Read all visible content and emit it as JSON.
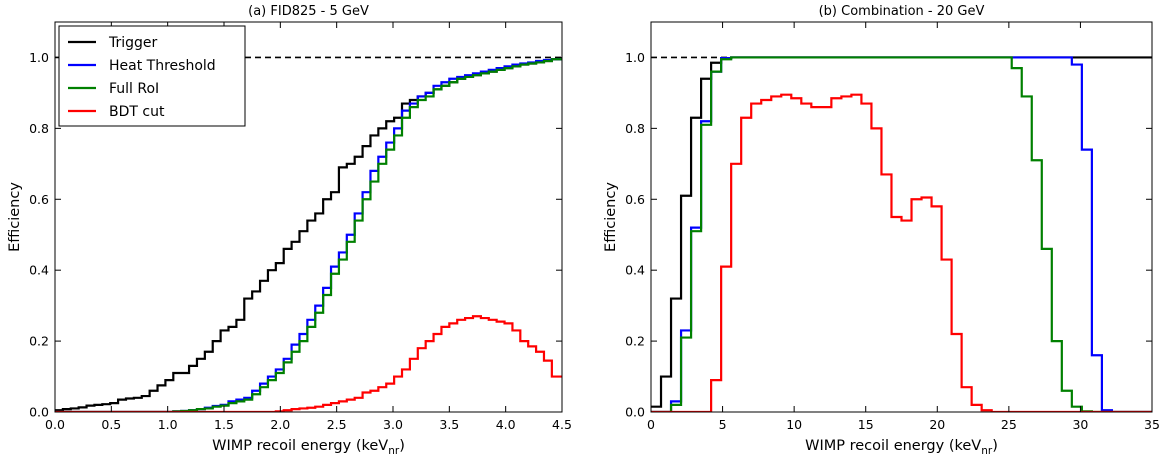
{
  "chart_data": [
    {
      "type": "line",
      "step": true,
      "title": "(a)  FID825 - 5 GeV",
      "xlabel_main": "WIMP recoil energy (keV",
      "xlabel_sub": "nr",
      "xlabel_close": ")",
      "ylabel": "Efficiency",
      "xlim": [
        0,
        4.5
      ],
      "ylim": [
        0,
        1.1
      ],
      "xticks": [
        0.0,
        0.5,
        1.0,
        1.5,
        2.0,
        2.5,
        3.0,
        3.5,
        4.0,
        4.5
      ],
      "xtick_labels": [
        "0.0",
        "0.5",
        "1.0",
        "1.5",
        "2.0",
        "2.5",
        "3.0",
        "3.5",
        "4.0",
        "4.5"
      ],
      "yticks": [
        0.0,
        0.2,
        0.4,
        0.6,
        0.8,
        1.0
      ],
      "ytick_labels": [
        "0.0",
        "0.2",
        "0.4",
        "0.6",
        "0.8",
        "1.0"
      ],
      "legend_position": "top-left",
      "reference_line": {
        "y": 1.0,
        "style": "dashed"
      },
      "bin_edges": [
        0.0,
        0.07,
        0.14,
        0.21,
        0.28,
        0.35,
        0.42,
        0.49,
        0.56,
        0.63,
        0.7,
        0.77,
        0.84,
        0.91,
        0.98,
        1.05,
        1.12,
        1.19,
        1.26,
        1.33,
        1.4,
        1.47,
        1.54,
        1.61,
        1.68,
        1.75,
        1.82,
        1.89,
        1.96,
        2.03,
        2.1,
        2.17,
        2.24,
        2.31,
        2.38,
        2.45,
        2.52,
        2.59,
        2.66,
        2.73,
        2.8,
        2.87,
        2.94,
        3.01,
        3.08,
        3.15,
        3.22,
        3.29,
        3.36,
        3.43,
        3.5,
        3.57,
        3.64,
        3.71,
        3.78,
        3.85,
        3.92,
        3.99,
        4.06,
        4.13,
        4.2,
        4.27,
        4.34,
        4.41,
        4.5
      ],
      "series": [
        {
          "name": "Trigger",
          "color": "#000000",
          "values": [
            0.005,
            0.008,
            0.01,
            0.013,
            0.018,
            0.02,
            0.022,
            0.025,
            0.035,
            0.038,
            0.04,
            0.045,
            0.06,
            0.075,
            0.09,
            0.11,
            0.11,
            0.13,
            0.15,
            0.17,
            0.2,
            0.23,
            0.24,
            0.26,
            0.32,
            0.34,
            0.37,
            0.4,
            0.42,
            0.46,
            0.48,
            0.51,
            0.54,
            0.56,
            0.6,
            0.62,
            0.69,
            0.7,
            0.72,
            0.75,
            0.78,
            0.8,
            0.82,
            0.83,
            0.87,
            0.88,
            0.89,
            0.9,
            0.91,
            0.92,
            0.93,
            0.94,
            0.945,
            0.95,
            0.955,
            0.96,
            0.965,
            0.97,
            0.975,
            0.98,
            0.983,
            0.986,
            0.99,
            0.995
          ]
        },
        {
          "name": "Heat Threshold",
          "color": "#0000ff",
          "values": [
            0,
            0,
            0,
            0,
            0,
            0,
            0,
            0,
            0,
            0,
            0,
            0,
            0,
            0,
            0,
            0.002,
            0.003,
            0.005,
            0.008,
            0.012,
            0.017,
            0.02,
            0.03,
            0.035,
            0.04,
            0.06,
            0.08,
            0.1,
            0.12,
            0.15,
            0.19,
            0.22,
            0.26,
            0.3,
            0.35,
            0.41,
            0.45,
            0.5,
            0.56,
            0.62,
            0.68,
            0.72,
            0.76,
            0.8,
            0.85,
            0.87,
            0.89,
            0.9,
            0.92,
            0.93,
            0.94,
            0.945,
            0.95,
            0.955,
            0.96,
            0.965,
            0.97,
            0.975,
            0.98,
            0.983,
            0.986,
            0.99,
            0.993,
            0.995
          ]
        },
        {
          "name": "Full RoI",
          "color": "#008000",
          "values": [
            0,
            0,
            0,
            0,
            0,
            0,
            0,
            0,
            0,
            0,
            0,
            0,
            0,
            0,
            0,
            0.002,
            0.003,
            0.005,
            0.008,
            0.01,
            0.015,
            0.018,
            0.025,
            0.03,
            0.035,
            0.05,
            0.07,
            0.09,
            0.11,
            0.14,
            0.17,
            0.2,
            0.24,
            0.28,
            0.33,
            0.39,
            0.43,
            0.48,
            0.54,
            0.6,
            0.65,
            0.7,
            0.74,
            0.78,
            0.83,
            0.86,
            0.88,
            0.89,
            0.91,
            0.92,
            0.93,
            0.94,
            0.945,
            0.95,
            0.955,
            0.96,
            0.965,
            0.97,
            0.975,
            0.98,
            0.983,
            0.986,
            0.99,
            0.995
          ]
        },
        {
          "name": "BDT cut",
          "color": "#ff0000",
          "values": [
            0,
            0,
            0,
            0,
            0,
            0,
            0,
            0,
            0,
            0,
            0,
            0,
            0,
            0,
            0,
            0,
            0,
            0,
            0,
            0,
            0,
            0,
            0,
            0,
            0,
            0,
            0,
            0,
            0.002,
            0.005,
            0.008,
            0.01,
            0.012,
            0.015,
            0.02,
            0.025,
            0.03,
            0.035,
            0.04,
            0.055,
            0.06,
            0.07,
            0.08,
            0.1,
            0.12,
            0.15,
            0.18,
            0.2,
            0.22,
            0.24,
            0.25,
            0.26,
            0.265,
            0.27,
            0.265,
            0.26,
            0.255,
            0.25,
            0.23,
            0.2,
            0.185,
            0.17,
            0.145,
            0.1
          ]
        }
      ]
    },
    {
      "type": "line",
      "step": true,
      "title": "(b)  Combination - 20 GeV",
      "xlabel_main": "WIMP recoil energy (keV",
      "xlabel_sub": "nr",
      "xlabel_close": ")",
      "ylabel": "Efficiency",
      "xlim": [
        0,
        35
      ],
      "ylim": [
        0,
        1.1
      ],
      "xticks": [
        0,
        5,
        10,
        15,
        20,
        25,
        30,
        35
      ],
      "xtick_labels": [
        "0",
        "5",
        "10",
        "15",
        "20",
        "25",
        "30",
        "35"
      ],
      "yticks": [
        0.0,
        0.2,
        0.4,
        0.6,
        0.8,
        1.0
      ],
      "ytick_labels": [
        "0.0",
        "0.2",
        "0.4",
        "0.6",
        "0.8",
        "1.0"
      ],
      "reference_line": {
        "y": 1.0,
        "style": "dashed"
      },
      "bin_edges": [
        0,
        0.7,
        1.4,
        2.1,
        2.8,
        3.5,
        4.2,
        4.9,
        5.6,
        6.3,
        7.0,
        7.7,
        8.4,
        9.1,
        9.8,
        10.5,
        11.2,
        11.9,
        12.6,
        13.3,
        14.0,
        14.7,
        15.4,
        16.1,
        16.8,
        17.5,
        18.2,
        18.9,
        19.6,
        20.3,
        21.0,
        21.7,
        22.4,
        23.1,
        23.8,
        24.5,
        25.2,
        25.9,
        26.6,
        27.3,
        28.0,
        28.7,
        29.4,
        30.1,
        30.8,
        31.5,
        32.2,
        32.9,
        33.6,
        34.3,
        35.0
      ],
      "series": [
        {
          "name": "Trigger",
          "color": "#000000",
          "values": [
            0.015,
            0.1,
            0.32,
            0.61,
            0.83,
            0.94,
            0.985,
            0.998,
            1.0,
            1.0,
            1.0,
            1.0,
            1.0,
            1.0,
            1.0,
            1.0,
            1.0,
            1.0,
            1.0,
            1.0,
            1.0,
            1.0,
            1.0,
            1.0,
            1.0,
            1.0,
            1.0,
            1.0,
            1.0,
            1.0,
            1.0,
            1.0,
            1.0,
            1.0,
            1.0,
            1.0,
            1.0,
            1.0,
            1.0,
            1.0,
            1.0,
            1.0,
            1.0,
            1.0,
            1.0,
            1.0,
            1.0,
            1.0,
            1.0,
            1.0
          ]
        },
        {
          "name": "Heat Threshold",
          "color": "#0000ff",
          "values": [
            0,
            0,
            0.03,
            0.23,
            0.52,
            0.82,
            0.96,
            0.998,
            1.0,
            1.0,
            1.0,
            1.0,
            1.0,
            1.0,
            1.0,
            1.0,
            1.0,
            1.0,
            1.0,
            1.0,
            1.0,
            1.0,
            1.0,
            1.0,
            1.0,
            1.0,
            1.0,
            1.0,
            1.0,
            1.0,
            1.0,
            1.0,
            1.0,
            1.0,
            1.0,
            1.0,
            1.0,
            1.0,
            1.0,
            1.0,
            1.0,
            1.0,
            0.98,
            0.74,
            0.16,
            0.005,
            0,
            0,
            0,
            0
          ]
        },
        {
          "name": "Full RoI",
          "color": "#008000",
          "values": [
            0,
            0,
            0.02,
            0.21,
            0.51,
            0.81,
            0.96,
            0.995,
            1.0,
            1.0,
            1.0,
            1.0,
            1.0,
            1.0,
            1.0,
            1.0,
            1.0,
            1.0,
            1.0,
            1.0,
            1.0,
            1.0,
            1.0,
            1.0,
            1.0,
            1.0,
            1.0,
            1.0,
            1.0,
            1.0,
            1.0,
            1.0,
            1.0,
            1.0,
            1.0,
            1.0,
            0.97,
            0.89,
            0.71,
            0.46,
            0.2,
            0.06,
            0.015,
            0.002,
            0,
            0,
            0,
            0,
            0,
            0
          ]
        },
        {
          "name": "BDT cut",
          "color": "#ff0000",
          "values": [
            0,
            0,
            0,
            0,
            0,
            0,
            0.09,
            0.41,
            0.7,
            0.83,
            0.87,
            0.88,
            0.89,
            0.895,
            0.885,
            0.87,
            0.86,
            0.86,
            0.885,
            0.89,
            0.895,
            0.87,
            0.8,
            0.67,
            0.55,
            0.54,
            0.6,
            0.605,
            0.58,
            0.43,
            0.22,
            0.07,
            0.02,
            0.005,
            0,
            0,
            0,
            0,
            0,
            0,
            0,
            0,
            0,
            0,
            0,
            0,
            0,
            0,
            0,
            0
          ]
        }
      ]
    }
  ]
}
